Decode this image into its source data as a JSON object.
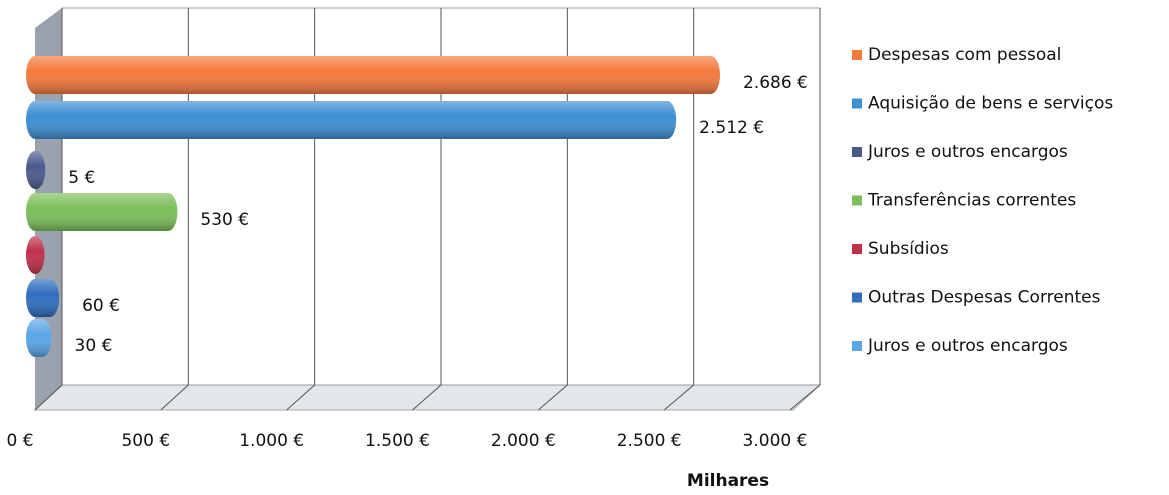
{
  "chart_data": {
    "type": "bar",
    "orientation": "horizontal",
    "x_axis_label": "Milhares",
    "xlim": [
      0,
      3000
    ],
    "xticks": [
      {
        "value": 0,
        "label": "0 €"
      },
      {
        "value": 500,
        "label": "500 €"
      },
      {
        "value": 1000,
        "label": "1.000 €"
      },
      {
        "value": 1500,
        "label": "1.500 €"
      },
      {
        "value": 2000,
        "label": "2.000 €"
      },
      {
        "value": 2500,
        "label": "2.500 €"
      },
      {
        "value": 3000,
        "label": "3.000 €"
      }
    ],
    "grid": true,
    "legend": "right",
    "series": [
      {
        "name": "Despesas com pessoal",
        "color": "#f4793b",
        "values": [
          2686
        ],
        "value_labels": [
          "2.686 €"
        ]
      },
      {
        "name": "Aquisição de bens e serviços",
        "color": "#3d8fd4",
        "values": [
          2512
        ],
        "value_labels": [
          "2.512 €"
        ]
      },
      {
        "name": "Juros e outros encargos",
        "color": "#4a5a8c",
        "values": [
          5
        ],
        "value_labels": [
          "5 €"
        ]
      },
      {
        "name": "Transferências correntes",
        "color": "#7cbf5a",
        "values": [
          530
        ],
        "value_labels": [
          "530 €"
        ]
      },
      {
        "name": "Subsídios",
        "color": "#c0304a",
        "values": [
          2
        ]
      },
      {
        "name": "Outras Despesas Correntes",
        "color": "#2e6dbf",
        "values": [
          60
        ],
        "value_labels": [
          "60 €"
        ]
      },
      {
        "name": "Juros e outros encargos",
        "color": "#5aa6e8",
        "values": [
          30
        ],
        "value_labels": [
          "30 €"
        ]
      }
    ]
  }
}
